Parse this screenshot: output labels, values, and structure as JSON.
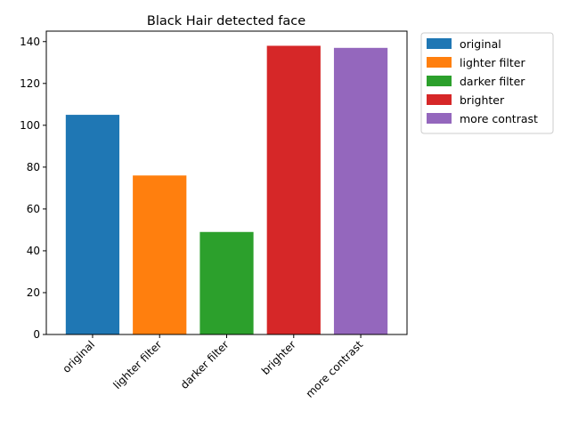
{
  "chart_data": {
    "type": "bar",
    "title": "Black Hair detected face",
    "xlabel": "",
    "ylabel": "",
    "categories": [
      "original",
      "lighter filter",
      "darker filter",
      "brighter",
      "more contrast"
    ],
    "values": [
      105,
      76,
      49,
      138,
      137
    ],
    "colors": [
      "#1f77b4",
      "#ff7f0e",
      "#2ca02c",
      "#d62728",
      "#9467bd"
    ],
    "ylim": [
      0,
      145
    ],
    "yticks": [
      0,
      20,
      40,
      60,
      80,
      100,
      120,
      140
    ],
    "grid": false,
    "legend": {
      "placement": "outside-top-right",
      "entries": [
        "original",
        "lighter filter",
        "darker filter",
        "brighter",
        "more contrast"
      ]
    }
  }
}
